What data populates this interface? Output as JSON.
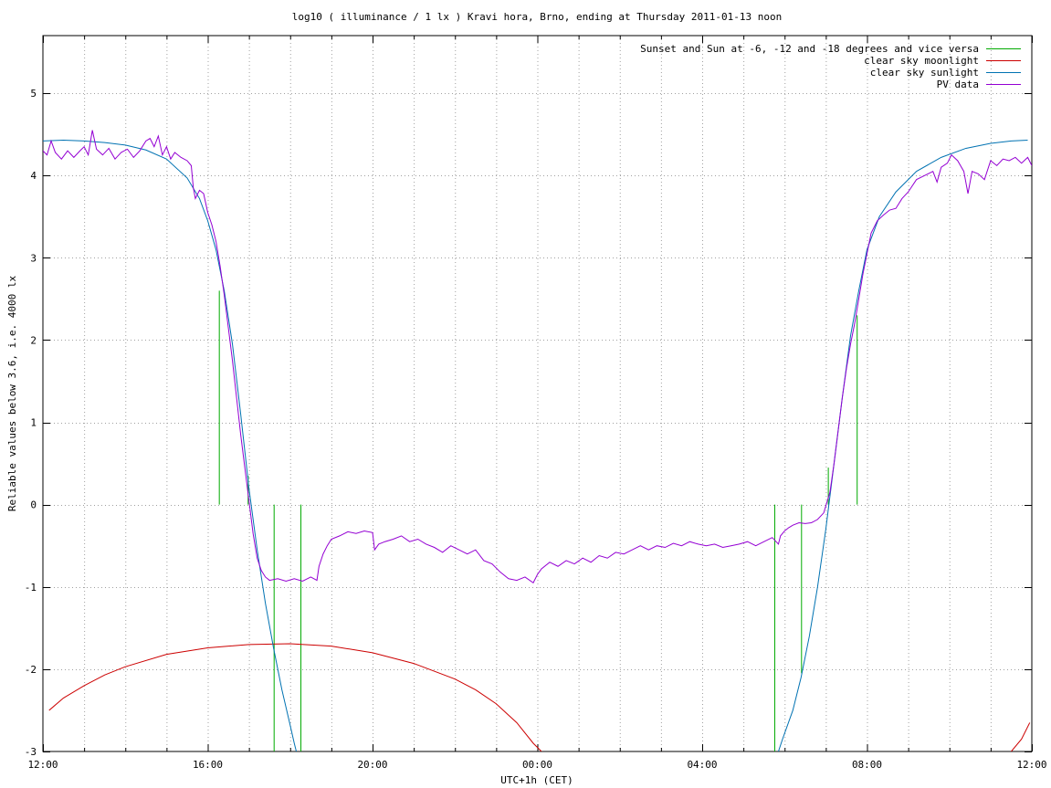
{
  "chart_data": {
    "type": "line",
    "title": "log10 ( illuminance / 1 lx ) Kravi hora, Brno, ending at Thursday 2011-01-13 noon",
    "xlabel": "UTC+1h (CET)",
    "ylabel": "Reliable values below 3.6, i.e. 4000 lx",
    "xlim": [
      0,
      24
    ],
    "ylim": [
      -3,
      5.7
    ],
    "x_ticks": [
      {
        "x": 0,
        "label": "12:00"
      },
      {
        "x": 4,
        "label": "16:00"
      },
      {
        "x": 8,
        "label": "20:00"
      },
      {
        "x": 12,
        "label": "00:00"
      },
      {
        "x": 16,
        "label": "04:00"
      },
      {
        "x": 20,
        "label": "08:00"
      },
      {
        "x": 24,
        "label": "12:00"
      }
    ],
    "x_minor_grid_hours": [
      1,
      2,
      3,
      5,
      6,
      7,
      9,
      10,
      11,
      13,
      14,
      15,
      17,
      18,
      19,
      21,
      22,
      23
    ],
    "y_ticks": [
      -3,
      -2,
      -1,
      0,
      1,
      2,
      3,
      4,
      5
    ],
    "grid": true,
    "legend_position": "top-right",
    "series": [
      {
        "name": "Sunset and Sun at -6, -12 and -18 degrees and vice versa",
        "color": "#00aa00",
        "kind": "vlines",
        "lines": [
          {
            "x": 4.27,
            "y0": 0,
            "y1": 2.6
          },
          {
            "x": 4.97,
            "y0": 0,
            "y1": 0.35
          },
          {
            "x": 5.6,
            "y0": -3,
            "y1": 0
          },
          {
            "x": 6.25,
            "y0": -3,
            "y1": 0
          },
          {
            "x": 17.75,
            "y0": -3,
            "y1": 0
          },
          {
            "x": 18.4,
            "y0": -2.05,
            "y1": 0
          },
          {
            "x": 19.05,
            "y0": 0,
            "y1": 0.45
          },
          {
            "x": 19.75,
            "y0": 0,
            "y1": 2.3
          }
        ]
      },
      {
        "name": "clear sky moonlight",
        "color": "#cc0000",
        "points": [
          [
            0.15,
            -2.5
          ],
          [
            0.5,
            -2.35
          ],
          [
            1,
            -2.2
          ],
          [
            1.5,
            -2.07
          ],
          [
            2,
            -1.97
          ],
          [
            3,
            -1.82
          ],
          [
            4,
            -1.74
          ],
          [
            5,
            -1.7
          ],
          [
            6,
            -1.69
          ],
          [
            7,
            -1.72
          ],
          [
            8,
            -1.8
          ],
          [
            9,
            -1.93
          ],
          [
            10,
            -2.12
          ],
          [
            10.5,
            -2.25
          ],
          [
            11,
            -2.42
          ],
          [
            11.5,
            -2.65
          ],
          [
            11.9,
            -2.9
          ],
          [
            12.1,
            -3.0
          ]
        ],
        "points_2": [
          [
            23.5,
            -3.0
          ],
          [
            23.75,
            -2.85
          ],
          [
            23.95,
            -2.65
          ]
        ]
      },
      {
        "name": "clear sky sunlight",
        "color": "#0072b2",
        "points": [
          [
            0,
            4.42
          ],
          [
            0.5,
            4.43
          ],
          [
            1,
            4.42
          ],
          [
            1.5,
            4.4
          ],
          [
            2,
            4.37
          ],
          [
            2.5,
            4.31
          ],
          [
            3,
            4.2
          ],
          [
            3.5,
            3.97
          ],
          [
            3.8,
            3.72
          ],
          [
            4,
            3.45
          ],
          [
            4.2,
            3.1
          ],
          [
            4.4,
            2.6
          ],
          [
            4.6,
            1.95
          ],
          [
            4.8,
            1.1
          ],
          [
            5,
            0.2
          ],
          [
            5.2,
            -0.55
          ],
          [
            5.4,
            -1.2
          ],
          [
            5.6,
            -1.75
          ],
          [
            5.8,
            -2.25
          ],
          [
            6,
            -2.68
          ],
          [
            6.1,
            -2.9
          ],
          [
            6.15,
            -3.0
          ]
        ],
        "points_2": [
          [
            17.85,
            -3.0
          ],
          [
            17.95,
            -2.85
          ],
          [
            18.2,
            -2.5
          ],
          [
            18.4,
            -2.1
          ],
          [
            18.6,
            -1.6
          ],
          [
            18.8,
            -1.0
          ],
          [
            19.0,
            -0.3
          ],
          [
            19.2,
            0.5
          ],
          [
            19.4,
            1.3
          ],
          [
            19.6,
            2.05
          ],
          [
            19.8,
            2.6
          ],
          [
            20.0,
            3.1
          ],
          [
            20.3,
            3.5
          ],
          [
            20.7,
            3.8
          ],
          [
            21.2,
            4.05
          ],
          [
            21.8,
            4.22
          ],
          [
            22.4,
            4.33
          ],
          [
            23,
            4.39
          ],
          [
            23.5,
            4.42
          ],
          [
            23.9,
            4.43
          ]
        ]
      },
      {
        "name": "PV data",
        "color": "#9400d3",
        "points": [
          [
            0,
            4.3
          ],
          [
            0.1,
            4.25
          ],
          [
            0.2,
            4.42
          ],
          [
            0.3,
            4.28
          ],
          [
            0.45,
            4.2
          ],
          [
            0.6,
            4.3
          ],
          [
            0.75,
            4.22
          ],
          [
            0.9,
            4.3
          ],
          [
            1.0,
            4.35
          ],
          [
            1.1,
            4.25
          ],
          [
            1.2,
            4.55
          ],
          [
            1.3,
            4.32
          ],
          [
            1.45,
            4.25
          ],
          [
            1.6,
            4.33
          ],
          [
            1.75,
            4.2
          ],
          [
            1.9,
            4.28
          ],
          [
            2.05,
            4.32
          ],
          [
            2.2,
            4.22
          ],
          [
            2.35,
            4.3
          ],
          [
            2.5,
            4.42
          ],
          [
            2.6,
            4.45
          ],
          [
            2.7,
            4.35
          ],
          [
            2.8,
            4.48
          ],
          [
            2.9,
            4.25
          ],
          [
            3.0,
            4.35
          ],
          [
            3.1,
            4.2
          ],
          [
            3.2,
            4.28
          ],
          [
            3.35,
            4.22
          ],
          [
            3.5,
            4.18
          ],
          [
            3.6,
            4.12
          ],
          [
            3.65,
            3.85
          ],
          [
            3.7,
            3.72
          ],
          [
            3.8,
            3.82
          ],
          [
            3.9,
            3.78
          ],
          [
            4.0,
            3.55
          ],
          [
            4.1,
            3.4
          ],
          [
            4.2,
            3.2
          ],
          [
            4.3,
            2.9
          ],
          [
            4.4,
            2.55
          ],
          [
            4.5,
            2.15
          ],
          [
            4.6,
            1.75
          ],
          [
            4.7,
            1.3
          ],
          [
            4.8,
            0.85
          ],
          [
            4.9,
            0.45
          ],
          [
            5.0,
            0.05
          ],
          [
            5.1,
            -0.35
          ],
          [
            5.2,
            -0.65
          ],
          [
            5.3,
            -0.8
          ],
          [
            5.4,
            -0.88
          ],
          [
            5.5,
            -0.92
          ],
          [
            5.7,
            -0.9
          ],
          [
            5.9,
            -0.93
          ],
          [
            6.1,
            -0.9
          ],
          [
            6.3,
            -0.93
          ],
          [
            6.5,
            -0.88
          ],
          [
            6.65,
            -0.92
          ],
          [
            6.7,
            -0.75
          ],
          [
            6.8,
            -0.6
          ],
          [
            6.9,
            -0.5
          ],
          [
            7.0,
            -0.42
          ],
          [
            7.2,
            -0.38
          ],
          [
            7.4,
            -0.33
          ],
          [
            7.6,
            -0.35
          ],
          [
            7.8,
            -0.32
          ],
          [
            8.0,
            -0.34
          ],
          [
            8.05,
            -0.55
          ],
          [
            8.15,
            -0.48
          ],
          [
            8.3,
            -0.45
          ],
          [
            8.5,
            -0.42
          ],
          [
            8.7,
            -0.38
          ],
          [
            8.9,
            -0.45
          ],
          [
            9.1,
            -0.42
          ],
          [
            9.3,
            -0.48
          ],
          [
            9.5,
            -0.52
          ],
          [
            9.7,
            -0.58
          ],
          [
            9.9,
            -0.5
          ],
          [
            10.1,
            -0.55
          ],
          [
            10.3,
            -0.6
          ],
          [
            10.5,
            -0.55
          ],
          [
            10.7,
            -0.68
          ],
          [
            10.9,
            -0.72
          ],
          [
            11.1,
            -0.82
          ],
          [
            11.3,
            -0.9
          ],
          [
            11.5,
            -0.92
          ],
          [
            11.7,
            -0.88
          ],
          [
            11.9,
            -0.95
          ],
          [
            12.0,
            -0.85
          ],
          [
            12.1,
            -0.78
          ],
          [
            12.3,
            -0.7
          ],
          [
            12.5,
            -0.75
          ],
          [
            12.7,
            -0.68
          ],
          [
            12.9,
            -0.72
          ],
          [
            13.1,
            -0.65
          ],
          [
            13.3,
            -0.7
          ],
          [
            13.5,
            -0.62
          ],
          [
            13.7,
            -0.65
          ],
          [
            13.9,
            -0.58
          ],
          [
            14.1,
            -0.6
          ],
          [
            14.3,
            -0.55
          ],
          [
            14.5,
            -0.5
          ],
          [
            14.7,
            -0.55
          ],
          [
            14.9,
            -0.5
          ],
          [
            15.1,
            -0.52
          ],
          [
            15.3,
            -0.47
          ],
          [
            15.5,
            -0.5
          ],
          [
            15.7,
            -0.45
          ],
          [
            15.9,
            -0.48
          ],
          [
            16.1,
            -0.5
          ],
          [
            16.3,
            -0.48
          ],
          [
            16.5,
            -0.52
          ],
          [
            16.7,
            -0.5
          ],
          [
            16.9,
            -0.48
          ],
          [
            17.1,
            -0.45
          ],
          [
            17.3,
            -0.5
          ],
          [
            17.5,
            -0.45
          ],
          [
            17.7,
            -0.4
          ],
          [
            17.85,
            -0.48
          ],
          [
            17.9,
            -0.38
          ],
          [
            18.0,
            -0.32
          ],
          [
            18.1,
            -0.28
          ],
          [
            18.2,
            -0.25
          ],
          [
            18.35,
            -0.22
          ],
          [
            18.5,
            -0.23
          ],
          [
            18.65,
            -0.22
          ],
          [
            18.8,
            -0.18
          ],
          [
            18.95,
            -0.1
          ],
          [
            19.1,
            0.15
          ],
          [
            19.2,
            0.5
          ],
          [
            19.3,
            0.9
          ],
          [
            19.4,
            1.3
          ],
          [
            19.5,
            1.65
          ],
          [
            19.6,
            1.95
          ],
          [
            19.7,
            2.2
          ],
          [
            19.8,
            2.5
          ],
          [
            19.9,
            2.8
          ],
          [
            20.0,
            3.05
          ],
          [
            20.1,
            3.3
          ],
          [
            20.25,
            3.45
          ],
          [
            20.4,
            3.52
          ],
          [
            20.55,
            3.58
          ],
          [
            20.7,
            3.6
          ],
          [
            20.85,
            3.72
          ],
          [
            21.0,
            3.8
          ],
          [
            21.2,
            3.95
          ],
          [
            21.4,
            4.0
          ],
          [
            21.6,
            4.05
          ],
          [
            21.7,
            3.92
          ],
          [
            21.8,
            4.1
          ],
          [
            21.95,
            4.15
          ],
          [
            22.05,
            4.25
          ],
          [
            22.2,
            4.18
          ],
          [
            22.35,
            4.05
          ],
          [
            22.45,
            3.78
          ],
          [
            22.55,
            4.05
          ],
          [
            22.7,
            4.02
          ],
          [
            22.85,
            3.95
          ],
          [
            23.0,
            4.18
          ],
          [
            23.15,
            4.12
          ],
          [
            23.3,
            4.2
          ],
          [
            23.45,
            4.18
          ],
          [
            23.6,
            4.22
          ],
          [
            23.75,
            4.15
          ],
          [
            23.9,
            4.22
          ],
          [
            24.0,
            4.12
          ]
        ]
      }
    ]
  }
}
